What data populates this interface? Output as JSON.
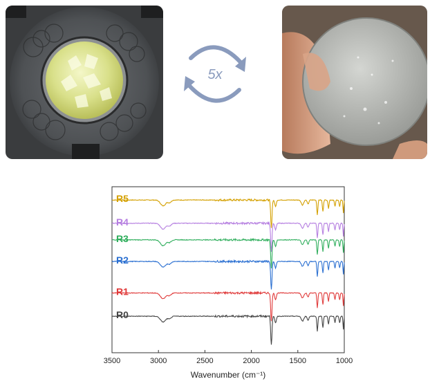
{
  "cycle": {
    "label": "5x",
    "color": "#8a9bbd"
  },
  "chart_data": {
    "type": "line",
    "title": "",
    "xlabel": "Wavenumber (cm⁻¹)",
    "ylabel": "",
    "xlim": [
      3500,
      1000
    ],
    "x_reversed": true,
    "xticks": [
      "3500",
      "3000",
      "2500",
      "2000",
      "1500",
      "1000"
    ],
    "grid": false,
    "legend": "inline labels, left side",
    "series": [
      {
        "name": "R5",
        "color": "#d4a000",
        "offset": 0.92
      },
      {
        "name": "R4",
        "color": "#b57ee0",
        "offset": 0.78
      },
      {
        "name": "R3",
        "color": "#2fae5c",
        "offset": 0.68
      },
      {
        "name": "R2",
        "color": "#2a6fd1",
        "offset": 0.55
      },
      {
        "name": "R1",
        "color": "#e03a3a",
        "offset": 0.36
      },
      {
        "name": "R0",
        "color": "#444444",
        "offset": 0.22
      }
    ],
    "bands": [
      {
        "x": 2950,
        "depth": 0.035,
        "width": 40
      },
      {
        "x": 2880,
        "depth": 0.015,
        "width": 25
      },
      {
        "x": 1785,
        "depth": 0.17,
        "width": 10
      },
      {
        "x": 1740,
        "depth": 0.04,
        "width": 12
      },
      {
        "x": 1450,
        "depth": 0.03,
        "width": 18
      },
      {
        "x": 1390,
        "depth": 0.025,
        "width": 12
      },
      {
        "x": 1290,
        "depth": 0.09,
        "width": 8
      },
      {
        "x": 1230,
        "depth": 0.07,
        "width": 8
      },
      {
        "x": 1170,
        "depth": 0.05,
        "width": 8
      },
      {
        "x": 1100,
        "depth": 0.04,
        "width": 8
      },
      {
        "x": 1050,
        "depth": 0.04,
        "width": 8
      },
      {
        "x": 1010,
        "depth": 0.08,
        "width": 6
      }
    ]
  }
}
